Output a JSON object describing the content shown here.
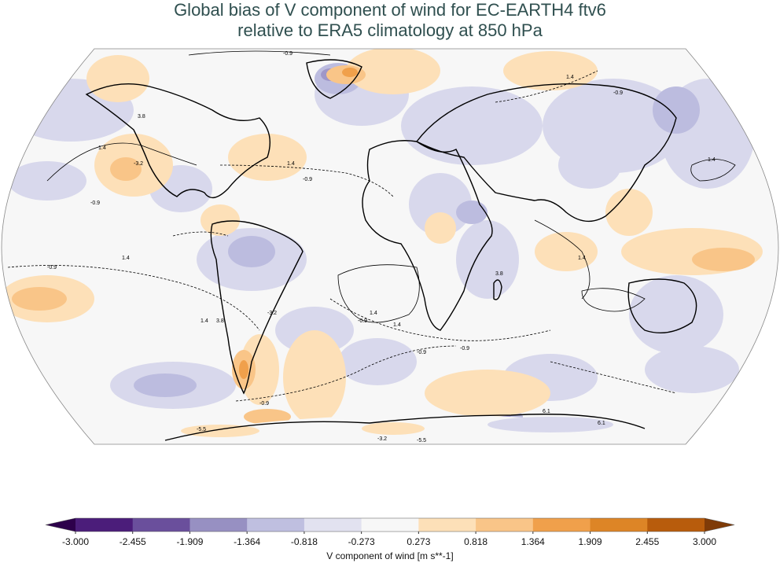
{
  "title_line1": "Global bias of V component of wind for EC-EARTH4 ftv6",
  "title_line2": "relative to ERA5 climatology at 850 hPa",
  "colorbar": {
    "label": "V component of wind [m s**-1]",
    "ticks": [
      "-3.000",
      "-2.455",
      "-1.909",
      "-1.364",
      "-0.818",
      "-0.273",
      "0.273",
      "0.818",
      "1.364",
      "1.909",
      "2.455",
      "3.000"
    ],
    "colors": [
      "#4b1d7a",
      "#6a4f9c",
      "#9790c2",
      "#bfbfe0",
      "#e2e2f0",
      "#f7f7f7",
      "#fde0b8",
      "#f9c588",
      "#f0a04b",
      "#dd8526",
      "#b85c0c"
    ],
    "under_color": "#2d004b",
    "over_color": "#7f3b08"
  },
  "map": {
    "projection": "Robinson",
    "contour_labels": [
      "-0.9",
      "1.4",
      "3.8",
      "-3.2",
      "6.1",
      "-5.5"
    ]
  }
}
